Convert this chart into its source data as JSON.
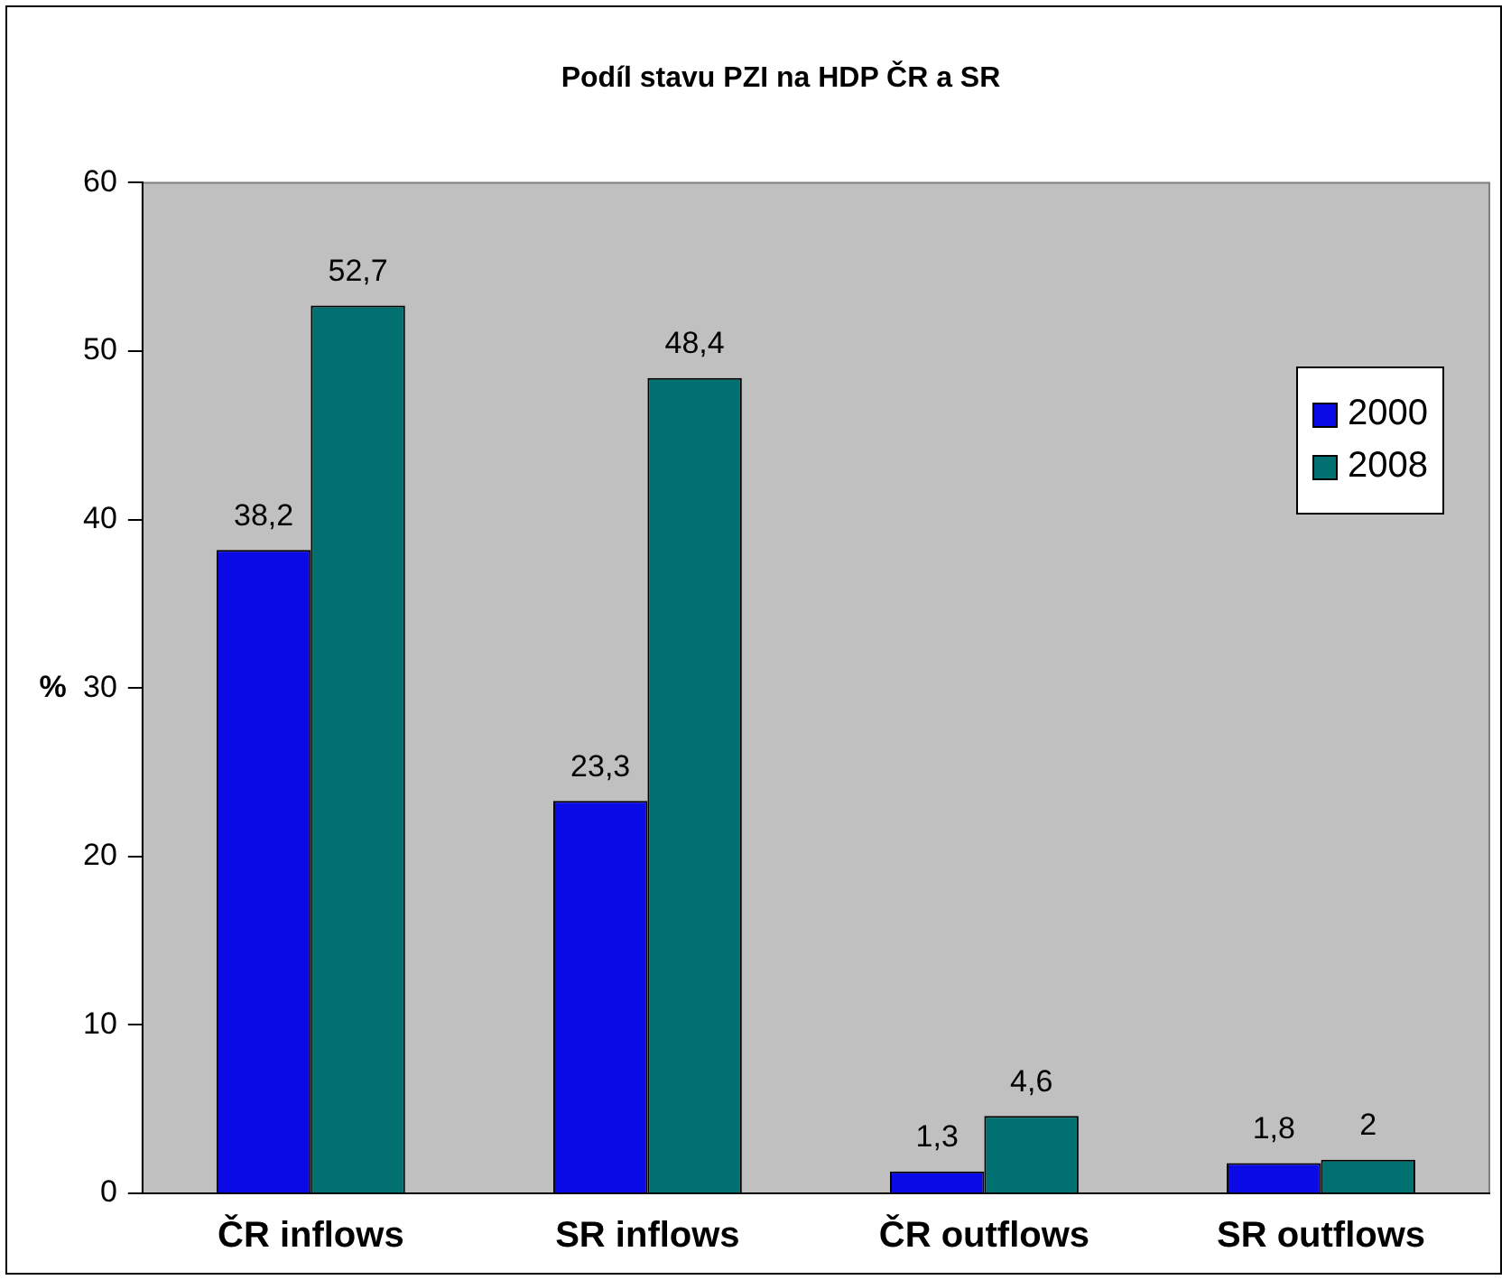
{
  "chart_data": {
    "type": "bar",
    "title": "Podíl stavu PZI na HDP ČR a SR",
    "ylabel": "%",
    "categories": [
      "ČR inflows",
      "SR inflows",
      "ČR outflows",
      "SR outflows"
    ],
    "series": [
      {
        "name": "2000",
        "color": "#0a0ae6",
        "values": [
          38.2,
          23.3,
          1.3,
          1.8
        ],
        "value_labels": [
          "38,2",
          "23,3",
          "1,3",
          "1,8"
        ]
      },
      {
        "name": "2008",
        "color": "#007070",
        "values": [
          52.7,
          48.4,
          4.6,
          2
        ],
        "value_labels": [
          "52,7",
          "48,4",
          "4,6",
          "2"
        ]
      }
    ],
    "ylim": [
      0,
      60
    ],
    "yticks": [
      0,
      10,
      20,
      30,
      40,
      50,
      60
    ],
    "grid": false,
    "legend": "top right"
  }
}
